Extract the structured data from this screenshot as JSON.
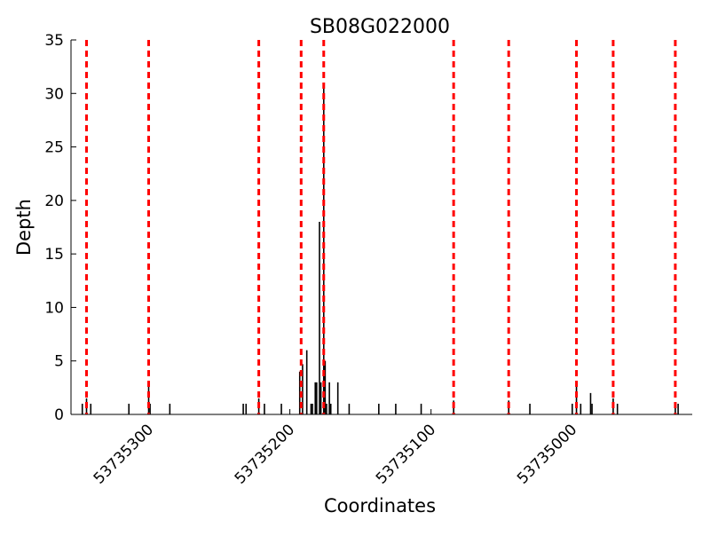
{
  "chart_data": {
    "type": "bar",
    "title": "SB08G022000",
    "x_label": "Coordinates",
    "y_label": "Depth",
    "x": [
      53735347,
      53735344,
      53735341,
      53735314,
      53735300,
      53735299,
      53735285,
      53735233,
      53735231,
      53735222,
      53735218,
      53735206,
      53735193,
      53735191,
      53735188,
      53735185,
      53735184,
      53735182,
      53735181,
      53735179,
      53735178,
      53735176,
      53735175,
      53735174,
      53735172,
      53735171,
      53735166,
      53735158,
      53735137,
      53735125,
      53735107,
      53735084,
      53735045,
      53735030,
      53735000,
      53734997,
      53734994,
      53734987,
      53734986,
      53734971,
      53734968,
      53734927,
      53734925
    ],
    "values": [
      1,
      1.5,
      1,
      1,
      3,
      1,
      1,
      1,
      1,
      1.5,
      1,
      1,
      4,
      4.7,
      6,
      1,
      1,
      3,
      3,
      18,
      3,
      31,
      5,
      1,
      3,
      1,
      3,
      1,
      1,
      1,
      1,
      1.3,
      1.3,
      1,
      1,
      2.7,
      1,
      2,
      1,
      1.5,
      1,
      1,
      1
    ],
    "color": "#000000",
    "markers": [
      53735344,
      53735300,
      53735222,
      53735192,
      53735176,
      53735084,
      53735045,
      53734997,
      53734971,
      53734927
    ],
    "marker_color": "#ff0000",
    "xlim": [
      53735355,
      53734915
    ],
    "xticks": [
      53735300,
      53735200,
      53735100,
      53735000
    ],
    "ylim": [
      0,
      35
    ],
    "yticks": [
      0,
      5,
      10,
      15,
      20,
      25,
      30,
      35
    ]
  }
}
